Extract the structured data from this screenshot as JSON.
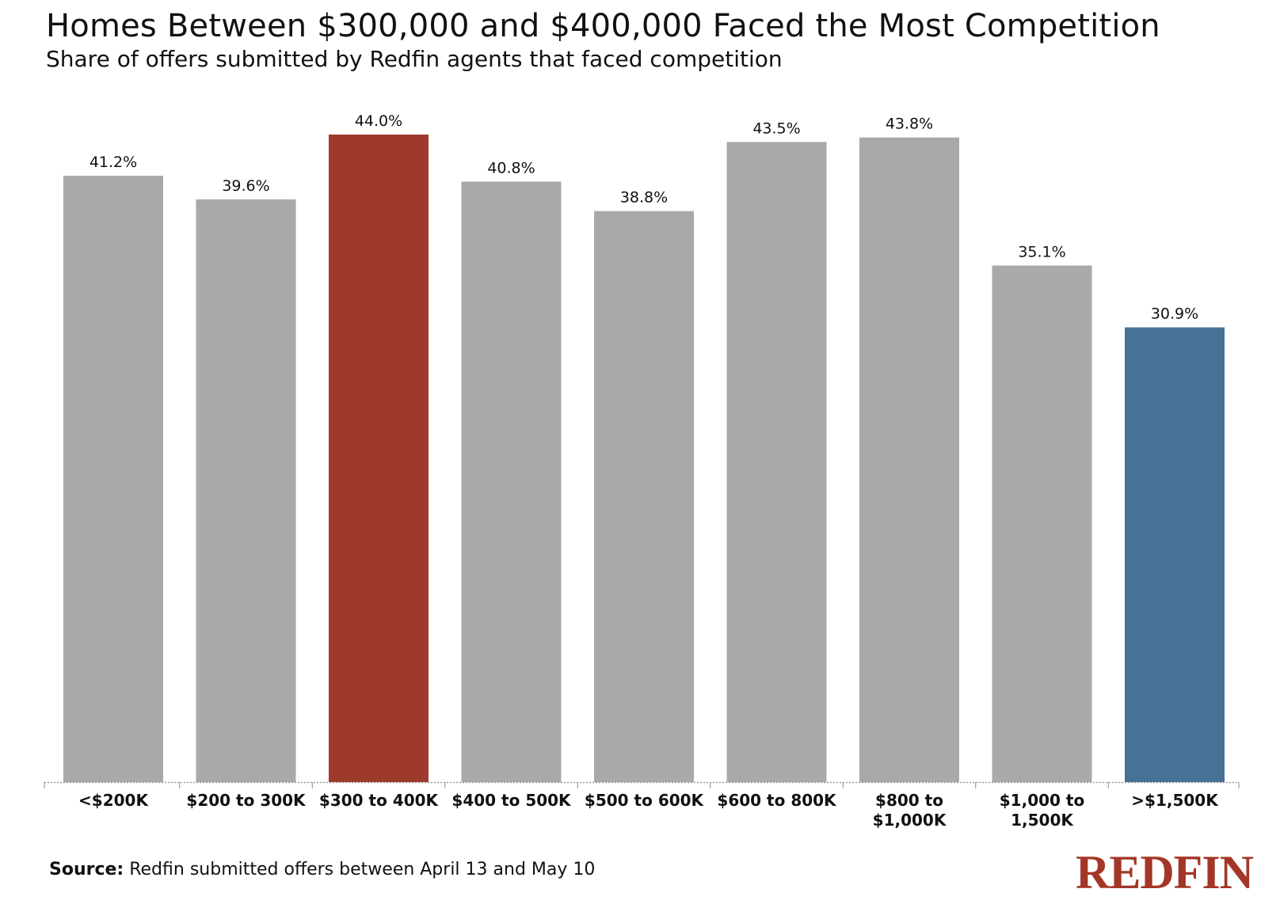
{
  "chart_data": {
    "type": "bar",
    "title": "Homes Between $300,000 and $400,000 Faced the Most Competition",
    "subtitle": "Share of offers submitted by Redfin agents that faced competition",
    "categories": [
      [
        "<$200K"
      ],
      [
        "$200 to 300K"
      ],
      [
        "$300 to 400K"
      ],
      [
        "$400 to 500K"
      ],
      [
        "$500 to 600K"
      ],
      [
        "$600 to 800K"
      ],
      [
        "$800 to",
        "$1,000K"
      ],
      [
        "$1,000 to",
        "1,500K"
      ],
      [
        ">$1,500K"
      ]
    ],
    "values": [
      41.2,
      39.6,
      44.0,
      40.8,
      38.8,
      43.5,
      43.8,
      35.1,
      30.9
    ],
    "value_labels": [
      "41.2%",
      "39.6%",
      "44.0%",
      "40.8%",
      "38.8%",
      "43.5%",
      "43.8%",
      "35.1%",
      "30.9%"
    ],
    "bar_colors": [
      "#a9a9a9",
      "#a9a9a9",
      "#9e3a2b",
      "#a9a9a9",
      "#a9a9a9",
      "#a9a9a9",
      "#a9a9a9",
      "#a9a9a9",
      "#477295"
    ],
    "xlabel": "",
    "ylabel": "",
    "ylim": [
      0,
      44.0
    ],
    "grid": false,
    "legend": "none"
  },
  "source": {
    "label": "Source:",
    "text": " Redfin submitted offers between April 13 and May 10"
  },
  "logo_text": "REDFIN"
}
